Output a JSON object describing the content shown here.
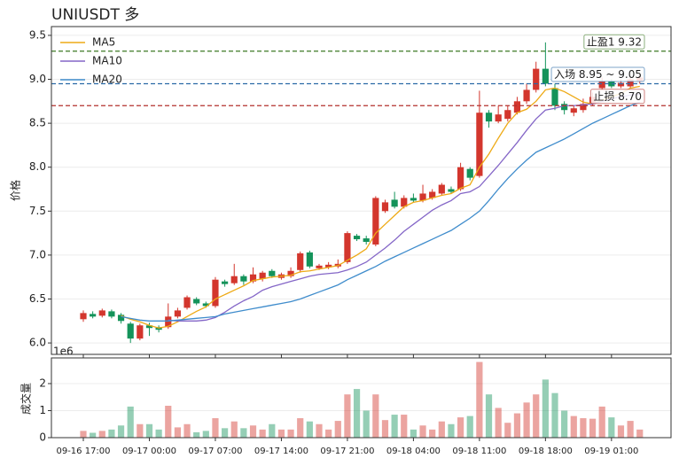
{
  "chart_data": {
    "type": "candlestick",
    "title": "UNIUSDT 多",
    "ylabel": "价格",
    "categories": [
      "09-16 17:00",
      "09-16 18:00",
      "09-16 19:00",
      "09-16 20:00",
      "09-16 21:00",
      "09-16 22:00",
      "09-16 23:00",
      "09-17 00:00",
      "09-17 01:00",
      "09-17 02:00",
      "09-17 03:00",
      "09-17 04:00",
      "09-17 05:00",
      "09-17 06:00",
      "09-17 07:00",
      "09-17 08:00",
      "09-17 09:00",
      "09-17 10:00",
      "09-17 11:00",
      "09-17 12:00",
      "09-17 13:00",
      "09-17 14:00",
      "09-17 15:00",
      "09-17 16:00",
      "09-17 17:00",
      "09-17 18:00",
      "09-17 19:00",
      "09-17 20:00",
      "09-17 21:00",
      "09-17 22:00",
      "09-17 23:00",
      "09-18 00:00",
      "09-18 01:00",
      "09-18 02:00",
      "09-18 03:00",
      "09-18 04:00",
      "09-18 05:00",
      "09-18 06:00",
      "09-18 07:00",
      "09-18 08:00",
      "09-18 09:00",
      "09-18 10:00",
      "09-18 11:00",
      "09-18 12:00",
      "09-18 13:00",
      "09-18 14:00",
      "09-18 15:00",
      "09-18 16:00",
      "09-18 17:00",
      "09-18 18:00",
      "09-18 19:00",
      "09-18 20:00",
      "09-18 21:00",
      "09-18 22:00",
      "09-18 23:00",
      "09-19 00:00",
      "09-19 01:00",
      "09-19 02:00",
      "09-19 03:00",
      "09-19 04:00"
    ],
    "xticks": [
      "09-16 17:00",
      "09-17 00:00",
      "09-17 07:00",
      "09-17 14:00",
      "09-17 21:00",
      "09-18 04:00",
      "09-18 11:00",
      "09-18 18:00",
      "09-19 01:00"
    ],
    "open": [
      6.27,
      6.33,
      6.31,
      6.36,
      6.32,
      6.22,
      6.05,
      6.2,
      6.18,
      6.18,
      6.3,
      6.4,
      6.5,
      6.45,
      6.42,
      6.7,
      6.68,
      6.76,
      6.7,
      6.73,
      6.82,
      6.74,
      6.76,
      6.83,
      7.03,
      6.85,
      6.86,
      6.87,
      6.92,
      7.22,
      7.19,
      7.12,
      7.5,
      7.63,
      7.55,
      7.65,
      7.62,
      7.65,
      7.7,
      7.75,
      7.75,
      7.98,
      7.9,
      8.62,
      8.52,
      8.55,
      8.62,
      8.75,
      8.88,
      9.12,
      8.9,
      8.72,
      8.62,
      8.65,
      8.72,
      8.9,
      8.98,
      8.92,
      8.92,
      8.98
    ],
    "high": [
      6.37,
      6.36,
      6.39,
      6.38,
      6.34,
      6.24,
      6.22,
      6.23,
      6.2,
      6.45,
      6.4,
      6.54,
      6.52,
      6.47,
      6.75,
      6.72,
      6.9,
      6.78,
      6.86,
      6.82,
      6.84,
      6.8,
      6.86,
      7.04,
      7.05,
      6.9,
      6.92,
      6.95,
      7.27,
      7.24,
      7.22,
      7.67,
      7.63,
      7.72,
      7.68,
      7.7,
      7.8,
      7.75,
      7.82,
      7.78,
      8.05,
      8.0,
      8.87,
      8.65,
      8.7,
      8.7,
      8.8,
      8.95,
      9.2,
      9.42,
      8.95,
      8.75,
      8.7,
      8.78,
      8.85,
      9.02,
      9.0,
      9.0,
      9.03,
      9.05
    ],
    "low": [
      6.24,
      6.28,
      6.29,
      6.28,
      6.22,
      6.0,
      6.03,
      6.08,
      6.12,
      6.16,
      6.28,
      6.38,
      6.43,
      6.4,
      6.4,
      6.64,
      6.66,
      6.66,
      6.68,
      6.7,
      6.74,
      6.72,
      6.74,
      6.8,
      6.85,
      6.83,
      6.84,
      6.85,
      6.9,
      7.16,
      7.12,
      7.1,
      7.48,
      7.53,
      7.53,
      7.6,
      7.6,
      7.63,
      7.68,
      7.7,
      7.73,
      7.85,
      7.88,
      8.45,
      8.5,
      8.52,
      8.6,
      8.72,
      8.85,
      8.92,
      8.65,
      8.6,
      8.58,
      8.62,
      8.7,
      8.88,
      8.9,
      8.9,
      8.9,
      8.95
    ],
    "close": [
      6.34,
      6.3,
      6.37,
      6.3,
      6.25,
      6.05,
      6.2,
      6.17,
      6.15,
      6.3,
      6.37,
      6.52,
      6.45,
      6.42,
      6.72,
      6.67,
      6.76,
      6.7,
      6.78,
      6.8,
      6.76,
      6.78,
      6.82,
      7.02,
      6.87,
      6.88,
      6.89,
      6.9,
      7.25,
      7.18,
      7.15,
      7.65,
      7.6,
      7.55,
      7.65,
      7.62,
      7.7,
      7.72,
      7.8,
      7.72,
      8.0,
      7.88,
      8.62,
      8.52,
      8.6,
      8.65,
      8.75,
      8.88,
      9.12,
      8.95,
      8.7,
      8.65,
      8.67,
      8.72,
      8.8,
      8.98,
      8.92,
      8.96,
      9.0,
      9.02
    ],
    "up_color": "#d3362d",
    "down_color": "#14935a",
    "series": [
      {
        "name": "MA5",
        "color": "#eeaa16",
        "values": [
          null,
          null,
          null,
          null,
          6.31,
          6.27,
          6.24,
          6.2,
          6.17,
          6.19,
          6.24,
          6.3,
          6.36,
          6.41,
          6.5,
          6.55,
          6.6,
          6.65,
          6.71,
          6.73,
          6.75,
          6.76,
          6.77,
          6.81,
          6.82,
          6.84,
          6.86,
          6.88,
          6.94,
          7.0,
          7.07,
          7.25,
          7.35,
          7.45,
          7.55,
          7.6,
          7.62,
          7.65,
          7.68,
          7.7,
          7.76,
          7.8,
          8.0,
          8.15,
          8.33,
          8.5,
          8.62,
          8.66,
          8.75,
          8.88,
          8.9,
          8.86,
          8.8,
          8.74,
          8.72,
          8.76,
          8.8,
          8.84,
          8.9,
          8.92
        ]
      },
      {
        "name": "MA10",
        "color": "#8466c7",
        "values": [
          null,
          null,
          null,
          null,
          null,
          null,
          null,
          null,
          null,
          6.26,
          6.25,
          6.25,
          6.25,
          6.26,
          6.29,
          6.35,
          6.42,
          6.48,
          6.53,
          6.6,
          6.64,
          6.67,
          6.7,
          6.73,
          6.76,
          6.78,
          6.79,
          6.8,
          6.83,
          6.87,
          6.92,
          7.0,
          7.08,
          7.17,
          7.27,
          7.35,
          7.43,
          7.51,
          7.57,
          7.62,
          7.7,
          7.72,
          7.78,
          7.9,
          8.02,
          8.15,
          8.28,
          8.42,
          8.55,
          8.65,
          8.67,
          8.7,
          8.7,
          8.71,
          8.72,
          8.75,
          8.78,
          8.8,
          8.82,
          8.83
        ]
      },
      {
        "name": "MA20",
        "color": "#3f8ccc",
        "values": [
          null,
          null,
          null,
          null,
          6.3,
          6.28,
          6.26,
          6.25,
          6.25,
          6.25,
          6.26,
          6.27,
          6.28,
          6.29,
          6.3,
          6.33,
          6.35,
          6.37,
          6.39,
          6.41,
          6.43,
          6.45,
          6.47,
          6.5,
          6.54,
          6.58,
          6.62,
          6.66,
          6.72,
          6.77,
          6.82,
          6.87,
          6.93,
          6.98,
          7.03,
          7.08,
          7.13,
          7.18,
          7.23,
          7.28,
          7.35,
          7.42,
          7.5,
          7.62,
          7.75,
          7.87,
          7.98,
          8.08,
          8.17,
          8.22,
          8.27,
          8.32,
          8.38,
          8.44,
          8.5,
          8.55,
          8.6,
          8.65,
          8.7,
          8.74
        ]
      }
    ],
    "legend": "upper left",
    "ylim": [
      5.87,
      9.6
    ],
    "yticks": [
      {
        "value": 6.0,
        "label": "6.0"
      },
      {
        "value": 6.5,
        "label": "6.5"
      },
      {
        "value": 7.0,
        "label": "7.0"
      },
      {
        "value": 7.5,
        "label": "7.5"
      },
      {
        "value": 8.0,
        "label": "8.0"
      },
      {
        "value": 8.5,
        "label": "8.5"
      },
      {
        "value": 9.0,
        "label": "9.0"
      },
      {
        "value": 9.5,
        "label": "9.5"
      }
    ],
    "grid": true,
    "hlines": [
      {
        "value": 9.32,
        "label": "止盈1 9.32",
        "color": "#3d7a25"
      },
      {
        "value": 8.95,
        "label": "入场 8.95 ~ 9.05",
        "color": "#2a69a6"
      },
      {
        "value": 8.7,
        "label": "止损 8.70",
        "color": "#b3312c"
      }
    ],
    "volume": {
      "ylabel": "成交量",
      "offset_label": "1e6",
      "values": [
        0.25,
        0.18,
        0.25,
        0.3,
        0.45,
        1.15,
        0.5,
        0.5,
        0.3,
        1.18,
        0.38,
        0.5,
        0.2,
        0.25,
        0.72,
        0.35,
        0.6,
        0.35,
        0.45,
        0.3,
        0.5,
        0.3,
        0.3,
        0.72,
        0.6,
        0.5,
        0.3,
        0.62,
        1.6,
        1.8,
        1.0,
        1.6,
        0.65,
        0.85,
        0.85,
        0.3,
        0.45,
        0.3,
        0.6,
        0.5,
        0.75,
        0.8,
        2.8,
        1.6,
        1.1,
        0.55,
        0.9,
        1.3,
        1.6,
        2.15,
        1.65,
        1.0,
        0.8,
        0.72,
        0.7,
        1.15,
        0.75,
        0.45,
        0.62,
        0.3
      ],
      "ylim": [
        0,
        2.95
      ],
      "yticks": [
        0,
        1,
        2
      ]
    }
  }
}
